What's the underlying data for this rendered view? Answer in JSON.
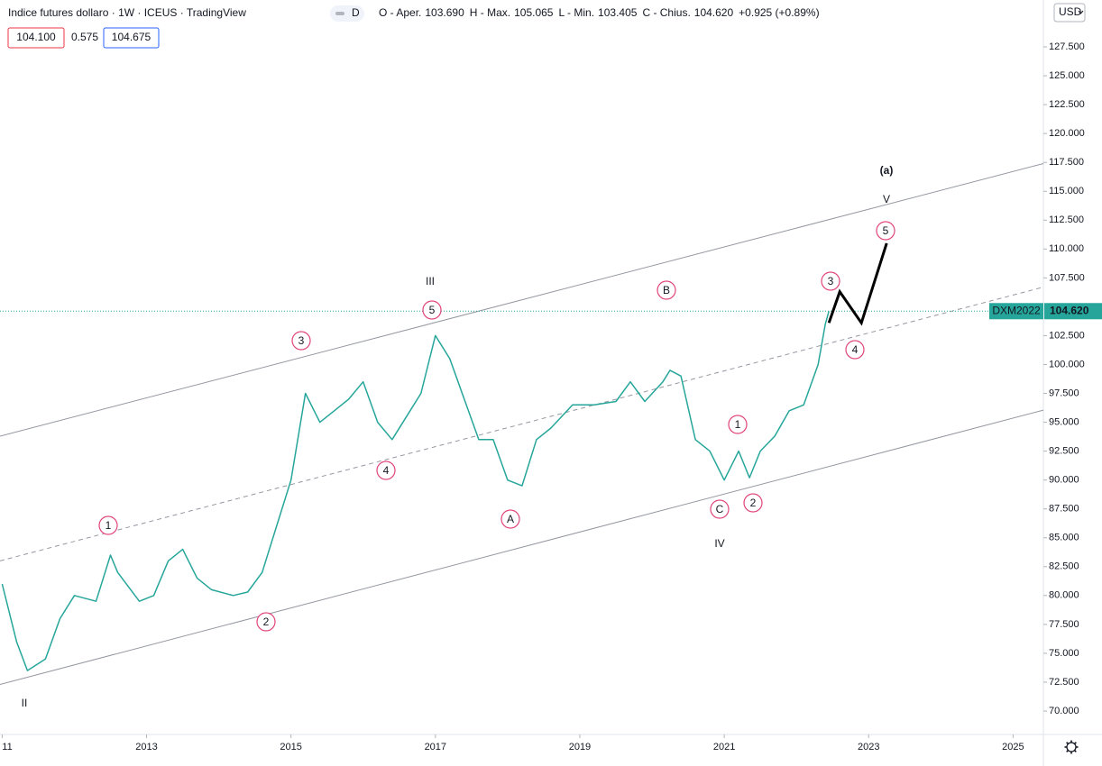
{
  "chart_data": {
    "type": "line",
    "title": "Indice futures dollaro · 1W · ICEUS · TradingView",
    "badge": "D",
    "ohlc": [
      {
        "label": "O - Aper.",
        "value": "103.690"
      },
      {
        "label": "H - Max.",
        "value": "105.065"
      },
      {
        "label": "L - Min.",
        "value": "103.405"
      },
      {
        "label": "C - Chius.",
        "value": "104.620"
      }
    ],
    "change": "+0.925 (+0.89%)",
    "boxes": [
      "104.100",
      "0.575",
      "104.675"
    ],
    "currency": "USD",
    "grid": false,
    "xlim": [
      2010.97,
      2025.42
    ],
    "xticks": [
      {
        "value": 2011,
        "label": "11"
      },
      2013,
      2015,
      2017,
      2019,
      2021,
      2023,
      2025
    ],
    "ylim": [
      67.97,
      131.56
    ],
    "yticks": [
      {
        "value": 70,
        "label": "70.000"
      },
      {
        "value": 72.5,
        "label": "72.500"
      },
      {
        "value": 75,
        "label": "75.000"
      },
      {
        "value": 77.5,
        "label": "77.500"
      },
      {
        "value": 80,
        "label": "80.000"
      },
      {
        "value": 82.5,
        "label": "82.500"
      },
      {
        "value": 85,
        "label": "85.000"
      },
      {
        "value": 87.5,
        "label": "87.500"
      },
      {
        "value": 90,
        "label": "90.000"
      },
      {
        "value": 92.5,
        "label": "92.500"
      },
      {
        "value": 95,
        "label": "95.000"
      },
      {
        "value": 97.5,
        "label": "97.500"
      },
      {
        "value": 100,
        "label": "100.000"
      },
      {
        "value": 102.5,
        "label": "102.500"
      },
      {
        "value": 107.5,
        "label": "107.500"
      },
      {
        "value": 110,
        "label": "110.000"
      },
      {
        "value": 112.5,
        "label": "112.500"
      },
      {
        "value": 115,
        "label": "115.000"
      },
      {
        "value": 117.5,
        "label": "117.500"
      },
      {
        "value": 120,
        "label": "120.000"
      },
      {
        "value": 122.5,
        "label": "122.500"
      },
      {
        "value": 125,
        "label": "125.000"
      },
      {
        "value": 127.5,
        "label": "127.500"
      }
    ],
    "series": [
      {
        "name": "DXM2022",
        "color": "#26a69a",
        "x": [
          2011.0,
          2011.2,
          2011.35,
          2011.6,
          2011.8,
          2012.0,
          2012.3,
          2012.5,
          2012.6,
          2012.9,
          2013.1,
          2013.3,
          2013.5,
          2013.7,
          2013.9,
          2014.2,
          2014.4,
          2014.6,
          2014.8,
          2015.0,
          2015.2,
          2015.4,
          2015.6,
          2015.8,
          2016.0,
          2016.2,
          2016.4,
          2016.6,
          2016.8,
          2017.0,
          2017.2,
          2017.4,
          2017.6,
          2017.8,
          2018.0,
          2018.2,
          2018.4,
          2018.6,
          2018.9,
          2019.2,
          2019.5,
          2019.7,
          2019.9,
          2020.15,
          2020.25,
          2020.4,
          2020.6,
          2020.8,
          2021.0,
          2021.2,
          2021.35,
          2021.5,
          2021.7,
          2021.9,
          2022.1,
          2022.3,
          2022.4,
          2022.45
        ],
        "values": [
          81,
          76,
          73.5,
          74.5,
          78,
          80,
          79.5,
          83.5,
          82,
          79.5,
          80,
          83,
          84,
          81.5,
          80.5,
          80,
          80.3,
          82,
          86,
          90,
          97.5,
          95,
          96,
          97,
          98.5,
          95,
          93.5,
          95.5,
          97.5,
          102.5,
          100.5,
          97,
          93.5,
          93.5,
          90,
          89.5,
          93.5,
          94.5,
          96.5,
          96.5,
          96.8,
          98.5,
          96.8,
          98.5,
          99.5,
          99,
          93.5,
          92.5,
          90,
          92.5,
          90.2,
          92.5,
          93.8,
          96,
          96.5,
          100,
          103.5,
          104.62
        ]
      }
    ],
    "projection": {
      "color": "#000000",
      "x": [
        2022.45,
        2022.6,
        2022.9,
        2023.25
      ],
      "values": [
        103.6,
        106.3,
        103.6,
        110.5
      ]
    },
    "channel": [
      {
        "color": "#9598a1",
        "dashed": false,
        "x": [
          2010.97,
          2025.42
        ],
        "values": [
          93.8,
          117.4
        ]
      },
      {
        "color": "#9598a1",
        "dashed": true,
        "x": [
          2010.97,
          2025.42
        ],
        "values": [
          83.0,
          106.7
        ]
      },
      {
        "color": "#9598a1",
        "dashed": false,
        "x": [
          2010.97,
          2025.42
        ],
        "values": [
          72.3,
          96.05
        ]
      }
    ],
    "annotations": [
      {
        "text": "II",
        "color": "#2e9a3c",
        "circled": false
      },
      {
        "text": "1",
        "color": "#e0457b",
        "circled": true
      },
      {
        "text": "2",
        "color": "#e0457b",
        "circled": true
      },
      {
        "text": "3",
        "color": "#e0457b",
        "circled": true
      },
      {
        "text": "4",
        "color": "#e0457b",
        "circled": true
      },
      {
        "text": "5",
        "color": "#e0457b",
        "circled": true
      },
      {
        "text": "III",
        "color": "#2e9a3c",
        "circled": false
      },
      {
        "text": "A",
        "color": "#e0457b",
        "circled": true
      },
      {
        "text": "B",
        "color": "#e0457b",
        "circled": true
      },
      {
        "text": "C",
        "color": "#e0457b",
        "circled": true
      },
      {
        "text": "IV",
        "color": "#2e9a3c",
        "circled": false
      },
      {
        "text": "1",
        "color": "#e0457b",
        "circled": true
      },
      {
        "text": "2",
        "color": "#e0457b",
        "circled": true
      },
      {
        "text": "3",
        "color": "#e0457b",
        "circled": true
      },
      {
        "text": "4",
        "color": "#e0457b",
        "circled": true
      },
      {
        "text": "5",
        "color": "#e0457b",
        "circled": true
      },
      {
        "text": "V",
        "color": "#2e9a3c",
        "circled": false
      },
      {
        "text": "(a)",
        "color": "#e53950",
        "circled": false
      }
    ]
  }
}
